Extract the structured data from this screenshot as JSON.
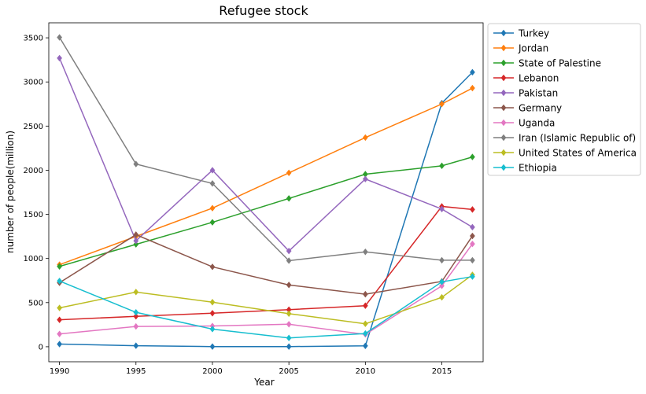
{
  "chart_data": {
    "type": "line",
    "title": "Refugee stock",
    "xlabel": "Year",
    "ylabel": "number of people(million)",
    "x": [
      1990,
      1995,
      2000,
      2005,
      2010,
      2015,
      2017
    ],
    "xticks": [
      1990,
      1995,
      2000,
      2005,
      2010,
      2015
    ],
    "yticks": [
      0,
      500,
      1000,
      1500,
      2000,
      2500,
      3000,
      3500
    ],
    "xlim": [
      1989.3,
      2017.7
    ],
    "ylim": [
      -170,
      3670
    ],
    "grid": false,
    "legend_position": "outside-top-right",
    "marker": "diamond",
    "series": [
      {
        "name": "Turkey",
        "color": "#1f77b4",
        "values": [
          30,
          12,
          2,
          2,
          10,
          2760,
          3110
        ]
      },
      {
        "name": "Jordan",
        "color": "#ff7f0e",
        "values": [
          930,
          1250,
          1570,
          1970,
          2370,
          2750,
          2930
        ]
      },
      {
        "name": "State of Palestine",
        "color": "#2ca02c",
        "values": [
          910,
          1160,
          1410,
          1680,
          1955,
          2050,
          2150
        ]
      },
      {
        "name": "Lebanon",
        "color": "#d62728",
        "values": [
          305,
          345,
          380,
          420,
          465,
          1590,
          1555
        ]
      },
      {
        "name": "Pakistan",
        "color": "#9467bd",
        "values": [
          3270,
          1200,
          2000,
          1085,
          1900,
          1560,
          1355
        ]
      },
      {
        "name": "Germany",
        "color": "#8c564b",
        "values": [
          725,
          1270,
          905,
          700,
          595,
          740,
          1255
        ]
      },
      {
        "name": "Uganda",
        "color": "#e377c2",
        "values": [
          145,
          230,
          235,
          255,
          140,
          690,
          1165
        ]
      },
      {
        "name": "Iran (Islamic Republic of)",
        "color": "#7f7f7f",
        "values": [
          3505,
          2070,
          1850,
          975,
          1075,
          980,
          980
        ]
      },
      {
        "name": "United States of America",
        "color": "#bcbd22",
        "values": [
          440,
          620,
          505,
          375,
          260,
          560,
          815
        ]
      },
      {
        "name": "Ethiopia",
        "color": "#17becf",
        "values": [
          745,
          390,
          200,
          100,
          150,
          735,
          795
        ]
      }
    ]
  }
}
